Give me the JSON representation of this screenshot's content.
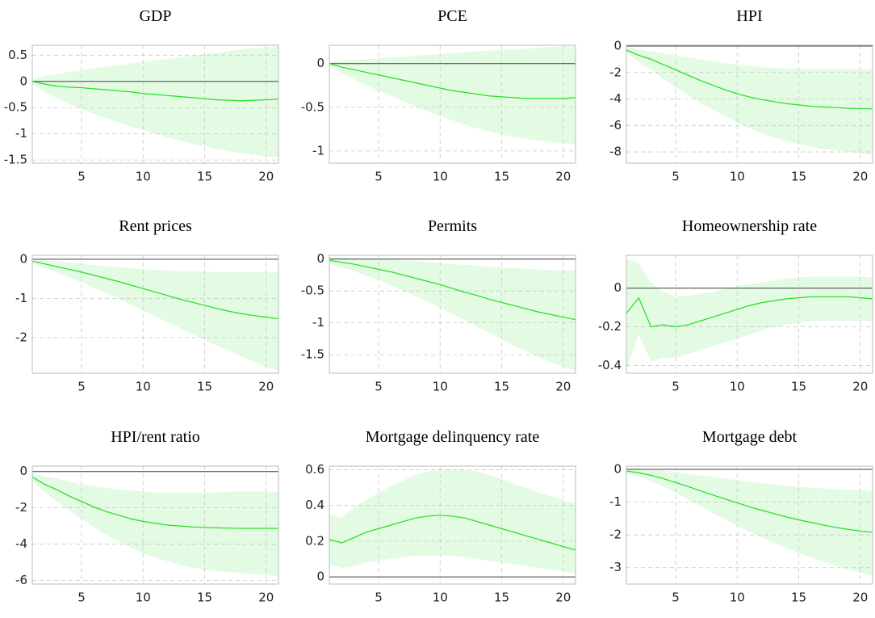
{
  "chart_data": [
    {
      "type": "line",
      "title": "GDP",
      "x": [
        1,
        2,
        3,
        4,
        5,
        6,
        7,
        8,
        9,
        10,
        11,
        12,
        13,
        14,
        15,
        16,
        17,
        18,
        19,
        20,
        21
      ],
      "xlim": [
        1,
        21
      ],
      "xticks": [
        5,
        10,
        15,
        20
      ],
      "ylim": [
        -1.56,
        0.69
      ],
      "yticks": [
        -1.5,
        -1,
        -0.5,
        0,
        0.5
      ],
      "grid": true,
      "series": [
        {
          "color": "#22dd22",
          "band_color": "#e3fbe3",
          "values": [
            0,
            -0.05,
            -0.09,
            -0.11,
            -0.12,
            -0.14,
            -0.16,
            -0.18,
            -0.2,
            -0.23,
            -0.25,
            -0.27,
            -0.29,
            -0.31,
            -0.33,
            -0.35,
            -0.36,
            -0.37,
            -0.36,
            -0.35,
            -0.34
          ],
          "upper": [
            0.05,
            0.1,
            0.14,
            0.18,
            0.21,
            0.25,
            0.28,
            0.31,
            0.34,
            0.37,
            0.4,
            0.43,
            0.46,
            0.49,
            0.52,
            0.55,
            0.58,
            0.61,
            0.63,
            0.65,
            0.67
          ],
          "lower": [
            -0.05,
            -0.2,
            -0.32,
            -0.43,
            -0.53,
            -0.62,
            -0.7,
            -0.78,
            -0.86,
            -0.93,
            -1.0,
            -1.07,
            -1.13,
            -1.19,
            -1.24,
            -1.29,
            -1.33,
            -1.37,
            -1.4,
            -1.43,
            -1.45
          ]
        }
      ]
    },
    {
      "type": "line",
      "title": "PCE",
      "x": [
        1,
        2,
        3,
        4,
        5,
        6,
        7,
        8,
        9,
        10,
        11,
        12,
        13,
        14,
        15,
        16,
        17,
        18,
        19,
        20,
        21
      ],
      "xlim": [
        1,
        21
      ],
      "xticks": [
        5,
        10,
        15,
        20
      ],
      "ylim": [
        -1.14,
        0.21
      ],
      "yticks": [
        -1,
        -0.5,
        0
      ],
      "grid": true,
      "series": [
        {
          "color": "#22dd22",
          "band_color": "#e3fbe3",
          "values": [
            0,
            -0.04,
            -0.07,
            -0.1,
            -0.13,
            -0.16,
            -0.19,
            -0.22,
            -0.25,
            -0.28,
            -0.31,
            -0.33,
            -0.35,
            -0.37,
            -0.38,
            -0.39,
            -0.4,
            -0.4,
            -0.4,
            -0.4,
            -0.39
          ],
          "upper": [
            0.02,
            0.03,
            0.04,
            0.05,
            0.06,
            0.07,
            0.08,
            0.09,
            0.1,
            0.11,
            0.12,
            0.13,
            0.14,
            0.15,
            0.16,
            0.16,
            0.17,
            0.18,
            0.19,
            0.2,
            0.2
          ],
          "lower": [
            -0.03,
            -0.11,
            -0.18,
            -0.25,
            -0.31,
            -0.37,
            -0.43,
            -0.49,
            -0.55,
            -0.6,
            -0.65,
            -0.7,
            -0.74,
            -0.78,
            -0.81,
            -0.84,
            -0.86,
            -0.88,
            -0.9,
            -0.91,
            -0.92
          ]
        }
      ]
    },
    {
      "type": "line",
      "title": "HPI",
      "x": [
        1,
        2,
        3,
        4,
        5,
        6,
        7,
        8,
        9,
        10,
        11,
        12,
        13,
        14,
        15,
        16,
        17,
        18,
        19,
        20,
        21
      ],
      "xlim": [
        1,
        21
      ],
      "xticks": [
        5,
        10,
        15,
        20
      ],
      "ylim": [
        -8.85,
        0.06
      ],
      "yticks": [
        -8,
        -6,
        -4,
        -2,
        0
      ],
      "grid": true,
      "series": [
        {
          "color": "#22dd22",
          "band_color": "#e3fbe3",
          "values": [
            -0.3,
            -0.7,
            -1.0,
            -1.4,
            -1.8,
            -2.2,
            -2.6,
            -2.95,
            -3.3,
            -3.6,
            -3.85,
            -4.05,
            -4.2,
            -4.35,
            -4.45,
            -4.55,
            -4.6,
            -4.65,
            -4.7,
            -4.72,
            -4.75
          ],
          "upper": [
            -0.1,
            -0.25,
            -0.4,
            -0.55,
            -0.7,
            -0.85,
            -1.0,
            -1.15,
            -1.3,
            -1.4,
            -1.5,
            -1.6,
            -1.65,
            -1.7,
            -1.7,
            -1.75,
            -1.75,
            -1.75,
            -1.75,
            -1.75,
            -1.75
          ],
          "lower": [
            -0.5,
            -1.2,
            -1.8,
            -2.5,
            -3.1,
            -3.7,
            -4.3,
            -4.8,
            -5.3,
            -5.8,
            -6.2,
            -6.6,
            -6.9,
            -7.2,
            -7.4,
            -7.6,
            -7.8,
            -7.9,
            -8.0,
            -8.1,
            -8.2
          ]
        }
      ]
    },
    {
      "type": "line",
      "title": "Rent prices",
      "x": [
        1,
        2,
        3,
        4,
        5,
        6,
        7,
        8,
        9,
        10,
        11,
        12,
        13,
        14,
        15,
        16,
        17,
        18,
        19,
        20,
        21
      ],
      "xlim": [
        1,
        21
      ],
      "xticks": [
        5,
        10,
        15,
        20
      ],
      "ylim": [
        -2.91,
        0.1
      ],
      "yticks": [
        -2,
        -1,
        0
      ],
      "grid": true,
      "series": [
        {
          "color": "#22dd22",
          "band_color": "#e3fbe3",
          "values": [
            -0.05,
            -0.12,
            -0.19,
            -0.26,
            -0.33,
            -0.41,
            -0.49,
            -0.57,
            -0.66,
            -0.75,
            -0.84,
            -0.93,
            -1.02,
            -1.1,
            -1.18,
            -1.26,
            -1.33,
            -1.39,
            -1.44,
            -1.48,
            -1.52
          ],
          "upper": [
            0,
            -0.03,
            -0.06,
            -0.09,
            -0.12,
            -0.15,
            -0.18,
            -0.2,
            -0.23,
            -0.25,
            -0.27,
            -0.29,
            -0.3,
            -0.31,
            -0.32,
            -0.33,
            -0.33,
            -0.33,
            -0.33,
            -0.33,
            -0.33
          ],
          "lower": [
            -0.1,
            -0.22,
            -0.34,
            -0.46,
            -0.59,
            -0.73,
            -0.87,
            -1.01,
            -1.16,
            -1.31,
            -1.46,
            -1.61,
            -1.76,
            -1.91,
            -2.06,
            -2.2,
            -2.34,
            -2.48,
            -2.62,
            -2.75,
            -2.85
          ]
        }
      ]
    },
    {
      "type": "line",
      "title": "Permits",
      "x": [
        1,
        2,
        3,
        4,
        5,
        6,
        7,
        8,
        9,
        10,
        11,
        12,
        13,
        14,
        15,
        16,
        17,
        18,
        19,
        20,
        21
      ],
      "xlim": [
        1,
        21
      ],
      "xticks": [
        5,
        10,
        15,
        20
      ],
      "ylim": [
        -1.79,
        0.06
      ],
      "yticks": [
        -1.5,
        -1,
        -0.5,
        0
      ],
      "grid": true,
      "series": [
        {
          "color": "#22dd22",
          "band_color": "#e3fbe3",
          "values": [
            -0.02,
            -0.05,
            -0.08,
            -0.12,
            -0.16,
            -0.2,
            -0.25,
            -0.3,
            -0.35,
            -0.4,
            -0.46,
            -0.52,
            -0.57,
            -0.63,
            -0.68,
            -0.73,
            -0.78,
            -0.83,
            -0.87,
            -0.91,
            -0.95
          ],
          "upper": [
            0.03,
            0.03,
            0.02,
            0.01,
            0,
            -0.01,
            -0.02,
            -0.03,
            -0.05,
            -0.06,
            -0.08,
            -0.09,
            -0.1,
            -0.12,
            -0.13,
            -0.14,
            -0.15,
            -0.16,
            -0.17,
            -0.18,
            -0.18
          ],
          "lower": [
            -0.07,
            -0.13,
            -0.19,
            -0.26,
            -0.33,
            -0.41,
            -0.49,
            -0.58,
            -0.67,
            -0.76,
            -0.86,
            -0.96,
            -1.06,
            -1.16,
            -1.26,
            -1.36,
            -1.45,
            -1.54,
            -1.62,
            -1.69,
            -1.75
          ]
        }
      ]
    },
    {
      "type": "line",
      "title": "Homeownership rate",
      "x": [
        1,
        2,
        3,
        4,
        5,
        6,
        7,
        8,
        9,
        10,
        11,
        12,
        13,
        14,
        15,
        16,
        17,
        18,
        19,
        20,
        21
      ],
      "xlim": [
        1,
        21
      ],
      "xticks": [
        5,
        10,
        15,
        20
      ],
      "ylim": [
        -0.44,
        0.17
      ],
      "yticks": [
        -0.4,
        -0.2,
        0
      ],
      "grid": true,
      "series": [
        {
          "color": "#22dd22",
          "band_color": "#e3fbe3",
          "values": [
            -0.13,
            -0.05,
            -0.2,
            -0.19,
            -0.2,
            -0.19,
            -0.17,
            -0.15,
            -0.13,
            -0.11,
            -0.09,
            -0.075,
            -0.065,
            -0.055,
            -0.05,
            -0.045,
            -0.045,
            -0.045,
            -0.045,
            -0.05,
            -0.055
          ],
          "upper": [
            0.15,
            0.13,
            0.03,
            -0.02,
            -0.04,
            -0.04,
            -0.03,
            -0.02,
            -0.005,
            0.01,
            0.02,
            0.03,
            0.04,
            0.05,
            0.055,
            0.06,
            0.06,
            0.06,
            0.06,
            0.06,
            0.055
          ],
          "lower": [
            -0.42,
            -0.24,
            -0.38,
            -0.36,
            -0.36,
            -0.34,
            -0.32,
            -0.3,
            -0.28,
            -0.26,
            -0.24,
            -0.22,
            -0.2,
            -0.19,
            -0.18,
            -0.17,
            -0.17,
            -0.17,
            -0.17,
            -0.17,
            -0.17
          ]
        }
      ]
    },
    {
      "type": "line",
      "title": "HPI/rent ratio",
      "x": [
        1,
        2,
        3,
        4,
        5,
        6,
        7,
        8,
        9,
        10,
        11,
        12,
        13,
        14,
        15,
        16,
        17,
        18,
        19,
        20,
        21
      ],
      "xlim": [
        1,
        21
      ],
      "xticks": [
        5,
        10,
        15,
        20
      ],
      "ylim": [
        -6.2,
        0.3
      ],
      "yticks": [
        -6,
        -4,
        -2,
        0
      ],
      "grid": true,
      "series": [
        {
          "color": "#22dd22",
          "band_color": "#e3fbe3",
          "values": [
            -0.3,
            -0.7,
            -1.0,
            -1.35,
            -1.65,
            -1.95,
            -2.2,
            -2.4,
            -2.6,
            -2.75,
            -2.85,
            -2.95,
            -3.0,
            -3.05,
            -3.08,
            -3.1,
            -3.12,
            -3.13,
            -3.13,
            -3.13,
            -3.13
          ],
          "upper": [
            -0.1,
            -0.25,
            -0.4,
            -0.55,
            -0.7,
            -0.8,
            -0.9,
            -1.0,
            -1.05,
            -1.1,
            -1.15,
            -1.15,
            -1.15,
            -1.15,
            -1.15,
            -1.15,
            -1.1,
            -1.1,
            -1.1,
            -1.1,
            -1.1
          ],
          "lower": [
            -0.5,
            -1.15,
            -1.65,
            -2.15,
            -2.6,
            -3.05,
            -3.5,
            -3.85,
            -4.2,
            -4.5,
            -4.75,
            -4.95,
            -5.15,
            -5.3,
            -5.4,
            -5.5,
            -5.55,
            -5.6,
            -5.65,
            -5.7,
            -5.75
          ]
        }
      ]
    },
    {
      "type": "line",
      "title": "Mortgage delinquency rate",
      "x": [
        1,
        2,
        3,
        4,
        5,
        6,
        7,
        8,
        9,
        10,
        11,
        12,
        13,
        14,
        15,
        16,
        17,
        18,
        19,
        20,
        21
      ],
      "xlim": [
        1,
        21
      ],
      "xticks": [
        5,
        10,
        15,
        20
      ],
      "ylim": [
        -0.04,
        0.62
      ],
      "yticks": [
        0,
        0.2,
        0.4,
        0.6
      ],
      "grid": true,
      "series": [
        {
          "color": "#22dd22",
          "band_color": "#e3fbe3",
          "values": [
            0.21,
            0.19,
            0.22,
            0.25,
            0.27,
            0.29,
            0.31,
            0.33,
            0.34,
            0.345,
            0.34,
            0.33,
            0.31,
            0.29,
            0.27,
            0.25,
            0.23,
            0.21,
            0.19,
            0.17,
            0.15
          ],
          "upper": [
            0.35,
            0.33,
            0.39,
            0.43,
            0.47,
            0.51,
            0.54,
            0.57,
            0.59,
            0.6,
            0.6,
            0.6,
            0.59,
            0.57,
            0.55,
            0.52,
            0.5,
            0.47,
            0.45,
            0.43,
            0.41
          ],
          "lower": [
            0.07,
            0.05,
            0.06,
            0.08,
            0.09,
            0.1,
            0.11,
            0.12,
            0.12,
            0.12,
            0.12,
            0.11,
            0.1,
            0.09,
            0.08,
            0.07,
            0.06,
            0.05,
            0.04,
            0.03,
            0.02
          ]
        }
      ]
    },
    {
      "type": "line",
      "title": "Mortgage debt",
      "x": [
        1,
        2,
        3,
        4,
        5,
        6,
        7,
        8,
        9,
        10,
        11,
        12,
        13,
        14,
        15,
        16,
        17,
        18,
        19,
        20,
        21
      ],
      "xlim": [
        1,
        21
      ],
      "xticks": [
        5,
        10,
        15,
        20
      ],
      "ylim": [
        -3.5,
        0.1
      ],
      "yticks": [
        -3,
        -2,
        -1,
        0
      ],
      "grid": true,
      "series": [
        {
          "color": "#22dd22",
          "band_color": "#e3fbe3",
          "values": [
            -0.05,
            -0.1,
            -0.18,
            -0.28,
            -0.4,
            -0.52,
            -0.65,
            -0.78,
            -0.9,
            -1.02,
            -1.14,
            -1.25,
            -1.35,
            -1.45,
            -1.54,
            -1.62,
            -1.7,
            -1.77,
            -1.83,
            -1.88,
            -1.92
          ],
          "upper": [
            0.03,
            0.02,
            0,
            -0.04,
            -0.08,
            -0.13,
            -0.18,
            -0.23,
            -0.28,
            -0.33,
            -0.38,
            -0.42,
            -0.46,
            -0.5,
            -0.53,
            -0.56,
            -0.58,
            -0.6,
            -0.62,
            -0.63,
            -0.64
          ],
          "lower": [
            -0.13,
            -0.22,
            -0.36,
            -0.52,
            -0.72,
            -0.91,
            -1.12,
            -1.33,
            -1.52,
            -1.72,
            -1.9,
            -2.08,
            -2.24,
            -2.4,
            -2.55,
            -2.69,
            -2.82,
            -2.94,
            -3.05,
            -3.15,
            -3.25
          ]
        }
      ]
    }
  ]
}
